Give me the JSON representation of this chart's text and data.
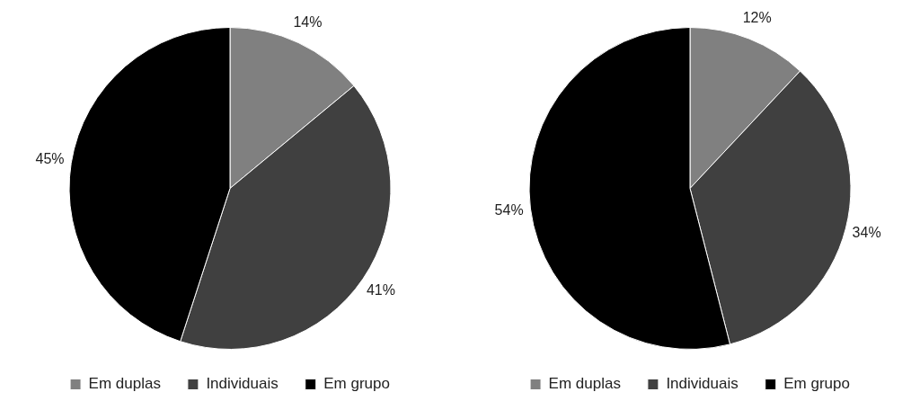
{
  "chart_data": [
    {
      "type": "pie",
      "categories": [
        "Em duplas",
        "Individuais",
        "Em grupo"
      ],
      "values": [
        14,
        41,
        45
      ],
      "colors": [
        "#808080",
        "#404040",
        "#000000"
      ],
      "value_labels": [
        "14%",
        "41%",
        "45%"
      ],
      "legend": "bottom"
    },
    {
      "type": "pie",
      "categories": [
        "Em duplas",
        "Individuais",
        "Em grupo"
      ],
      "values": [
        12,
        34,
        54
      ],
      "colors": [
        "#808080",
        "#404040",
        "#000000"
      ],
      "value_labels": [
        "12%",
        "34%",
        "54%"
      ],
      "legend": "bottom"
    }
  ]
}
